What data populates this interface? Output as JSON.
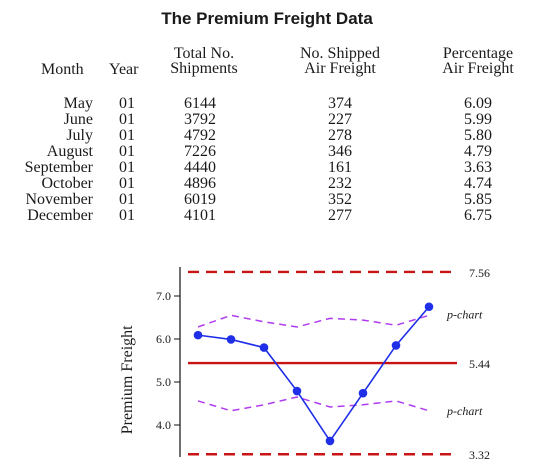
{
  "title": "The Premium Freight Data",
  "table": {
    "headers": {
      "month": "Month",
      "year": "Year",
      "total": [
        "Total No.",
        "Shipments"
      ],
      "shipped": [
        "No. Shipped",
        "Air Freight"
      ],
      "pct": [
        "Percentage",
        "Air Freight"
      ]
    },
    "rows": [
      {
        "month": "May",
        "year": "01",
        "total": "6144",
        "shipped": "374",
        "pct": "6.09"
      },
      {
        "month": "June",
        "year": "01",
        "total": "3792",
        "shipped": "227",
        "pct": "5.99"
      },
      {
        "month": "July",
        "year": "01",
        "total": "4792",
        "shipped": "278",
        "pct": "5.80"
      },
      {
        "month": "August",
        "year": "01",
        "total": "7226",
        "shipped": "346",
        "pct": "4.79"
      },
      {
        "month": "September",
        "year": "01",
        "total": "4440",
        "shipped": "161",
        "pct": "3.63"
      },
      {
        "month": "October",
        "year": "01",
        "total": "4896",
        "shipped": "232",
        "pct": "4.74"
      },
      {
        "month": "November",
        "year": "01",
        "total": "6019",
        "shipped": "352",
        "pct": "5.85"
      },
      {
        "month": "December",
        "year": "01",
        "total": "4101",
        "shipped": "277",
        "pct": "6.75"
      }
    ]
  },
  "chart_data": {
    "type": "line",
    "ylabel": "Premium Freight",
    "yticks": [
      "4.0",
      "5.0",
      "6.0",
      "7.0"
    ],
    "ylim": [
      3.2,
      7.7
    ],
    "series": [
      {
        "values": [
          6.09,
          5.99,
          5.8,
          4.79,
          3.63,
          4.74,
          5.85,
          6.75
        ],
        "color": "#1f2fe8"
      }
    ],
    "reference_lines": [
      {
        "label": "7.56",
        "value": 7.56,
        "style": "dashed",
        "color": "#c81414"
      },
      {
        "label": "5.44",
        "value": 5.44,
        "style": "solid",
        "color": "#c81414"
      },
      {
        "label": "3.32",
        "value": 3.32,
        "style": "dashed",
        "color": "#c81414"
      }
    ],
    "p_chart_limits": {
      "label": "p-chart",
      "color": "#b03cf0",
      "upper": [
        6.28,
        6.55,
        6.4,
        6.28,
        6.48,
        6.44,
        6.32,
        6.55
      ],
      "lower": [
        4.56,
        4.33,
        4.47,
        4.65,
        4.42,
        4.47,
        4.56,
        4.33
      ]
    }
  }
}
